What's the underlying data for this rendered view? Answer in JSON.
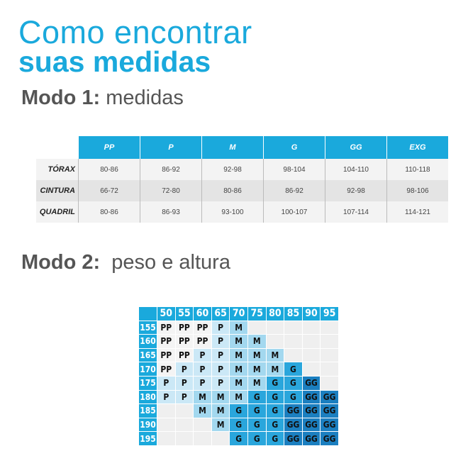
{
  "title_line1": "Como encontrar",
  "title_line2": "suas medidas",
  "mode1": {
    "label": "Modo 1:",
    "text": "medidas"
  },
  "mode2": {
    "label": "Modo 2:",
    "text": "peso e altura"
  },
  "measures_table": {
    "headers": [
      "PP",
      "P",
      "M",
      "G",
      "GG",
      "EXG"
    ],
    "rows": [
      {
        "label": "TÓRAX",
        "values": [
          "80-86",
          "86-92",
          "92-98",
          "98-104",
          "104-110",
          "110-118"
        ]
      },
      {
        "label": "CINTURA",
        "values": [
          "66-72",
          "72-80",
          "80-86",
          "86-92",
          "92-98",
          "98-106"
        ]
      },
      {
        "label": "QUADRIL",
        "values": [
          "80-86",
          "86-93",
          "93-100",
          "100-107",
          "107-114",
          "114-121"
        ]
      }
    ]
  },
  "weight_height_table": {
    "weights": [
      "50",
      "55",
      "60",
      "65",
      "70",
      "75",
      "80",
      "85",
      "90",
      "95"
    ],
    "heights": [
      "155",
      "160",
      "165",
      "170",
      "175",
      "180",
      "185",
      "190",
      "195"
    ],
    "cells": [
      [
        "PP",
        "PP",
        "PP",
        "P",
        "M",
        "",
        "",
        "",
        "",
        ""
      ],
      [
        "PP",
        "PP",
        "PP",
        "P",
        "M",
        "M",
        "",
        "",
        "",
        ""
      ],
      [
        "PP",
        "PP",
        "P",
        "P",
        "M",
        "M",
        "M",
        "",
        "",
        ""
      ],
      [
        "PP",
        "P",
        "P",
        "P",
        "M",
        "M",
        "M",
        "G",
        "",
        ""
      ],
      [
        "P",
        "P",
        "P",
        "P",
        "M",
        "M",
        "G",
        "G",
        "GG",
        ""
      ],
      [
        "P",
        "P",
        "M",
        "M",
        "M",
        "G",
        "G",
        "G",
        "GG",
        "GG"
      ],
      [
        "",
        "",
        "M",
        "M",
        "G",
        "G",
        "G",
        "GG",
        "GG",
        "GG"
      ],
      [
        "",
        "",
        "",
        "M",
        "G",
        "G",
        "G",
        "GG",
        "GG",
        "GG"
      ],
      [
        "",
        "",
        "",
        "",
        "G",
        "G",
        "G",
        "GG",
        "GG",
        "GG"
      ]
    ],
    "colors": {
      "PP": "#f4f4f4",
      "P": "#cbe8f6",
      "M": "#a3d8ef",
      "G": "#2aa6dc",
      "GG": "#1b7fc0",
      "": "#efefef",
      "header": "#1aa9dc"
    }
  }
}
